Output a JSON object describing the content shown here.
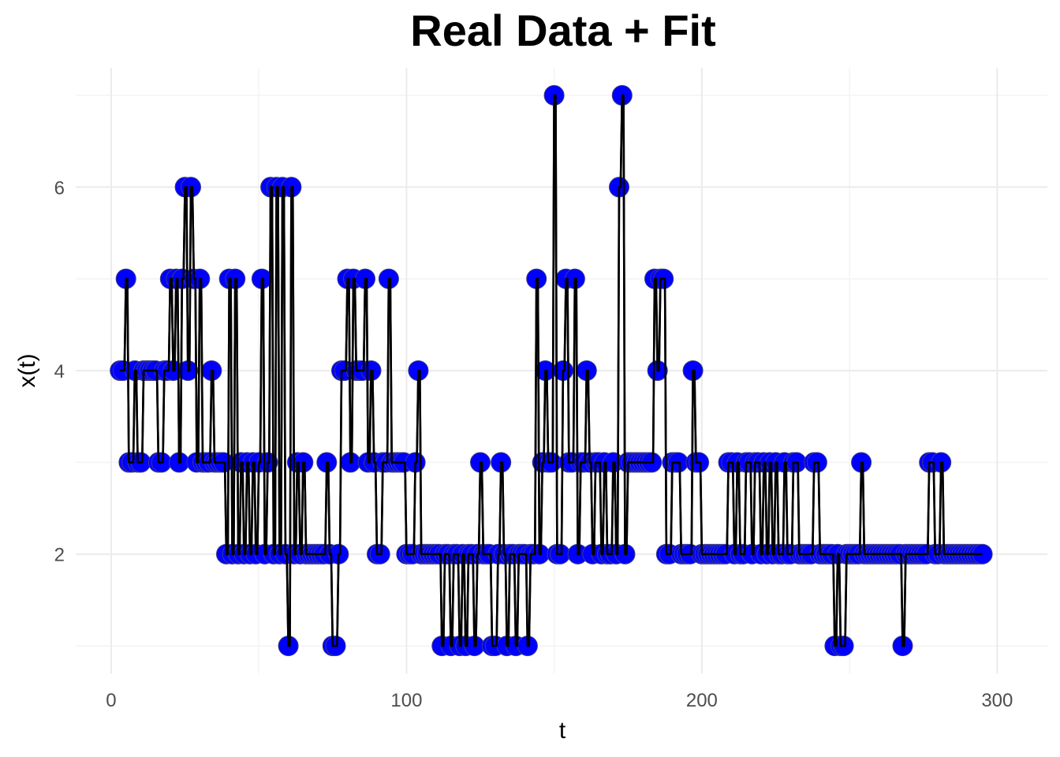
{
  "chart_data": {
    "type": "line",
    "title": "Real Data + Fit",
    "xlabel": "t",
    "ylabel": "x(t)",
    "xlim": [
      -12,
      317
    ],
    "ylim": [
      0.7,
      7.3
    ],
    "x_ticks": [
      0,
      100,
      200,
      300
    ],
    "y_ticks": [
      2,
      4,
      6
    ],
    "grid": true,
    "legend": "none",
    "series": [
      {
        "role": "observed points",
        "color": "#0000ff",
        "x_start": 3,
        "x_step": 1,
        "values": [
          4,
          4,
          5,
          3,
          3,
          4,
          3,
          3,
          4,
          4,
          4,
          4,
          4,
          3,
          3,
          4,
          4,
          5,
          4,
          5,
          3,
          5,
          6,
          4,
          6,
          5,
          3,
          5,
          3,
          3,
          3,
          4,
          3,
          3,
          3,
          3,
          2,
          5,
          2,
          5,
          2,
          3,
          2,
          3,
          2,
          3,
          2,
          3,
          5,
          2,
          3,
          6,
          2,
          6,
          2,
          6,
          2,
          1,
          6,
          2,
          3,
          2,
          3,
          2,
          2,
          2,
          2,
          2,
          2,
          2,
          3,
          2,
          1,
          1,
          2,
          4,
          4,
          5,
          3,
          5,
          4,
          4,
          4,
          5,
          3,
          4,
          3,
          2,
          2,
          3,
          3,
          5,
          3,
          3,
          3,
          3,
          3,
          2,
          2,
          2,
          3,
          4,
          2,
          2,
          2,
          2,
          2,
          2,
          2,
          1,
          2,
          2,
          1,
          2,
          2,
          1,
          2,
          1,
          2,
          2,
          1,
          2,
          3,
          2,
          2,
          2,
          1,
          1,
          2,
          3,
          2,
          1,
          2,
          2,
          1,
          2,
          2,
          2,
          1,
          2,
          2,
          5,
          2,
          3,
          4,
          3,
          3,
          7,
          2,
          2,
          4,
          5,
          3,
          3,
          5,
          2,
          3,
          3,
          4,
          3,
          2,
          3,
          3,
          2,
          3,
          2,
          2,
          3,
          2,
          6,
          7,
          2,
          3,
          3,
          3,
          3,
          3,
          3,
          3,
          3,
          3,
          5,
          4,
          5,
          5,
          2,
          2,
          3,
          3,
          3,
          2,
          2,
          2,
          2,
          4,
          3,
          3,
          2,
          2,
          2,
          2,
          2,
          2,
          2,
          2,
          2,
          3,
          3,
          2,
          3,
          2,
          2,
          3,
          3,
          2,
          3,
          3,
          2,
          3,
          2,
          3,
          2,
          3,
          2,
          2,
          3,
          2,
          2,
          3,
          3,
          2,
          2,
          2,
          2,
          2,
          3,
          3,
          2,
          2,
          2,
          2,
          2,
          1,
          2,
          1,
          1,
          2,
          2,
          2,
          2,
          2,
          3,
          2,
          2,
          2,
          2,
          2,
          2,
          2,
          2,
          2,
          2,
          2,
          2,
          2,
          1,
          2,
          2,
          2,
          2,
          2,
          2,
          2,
          2,
          3,
          3,
          2,
          2,
          3,
          2,
          2,
          2,
          2,
          2,
          2,
          2,
          2,
          2,
          2,
          2,
          2,
          2,
          2
        ]
      },
      {
        "role": "fit",
        "color": "#000000",
        "note": "step line following observed values"
      }
    ]
  }
}
